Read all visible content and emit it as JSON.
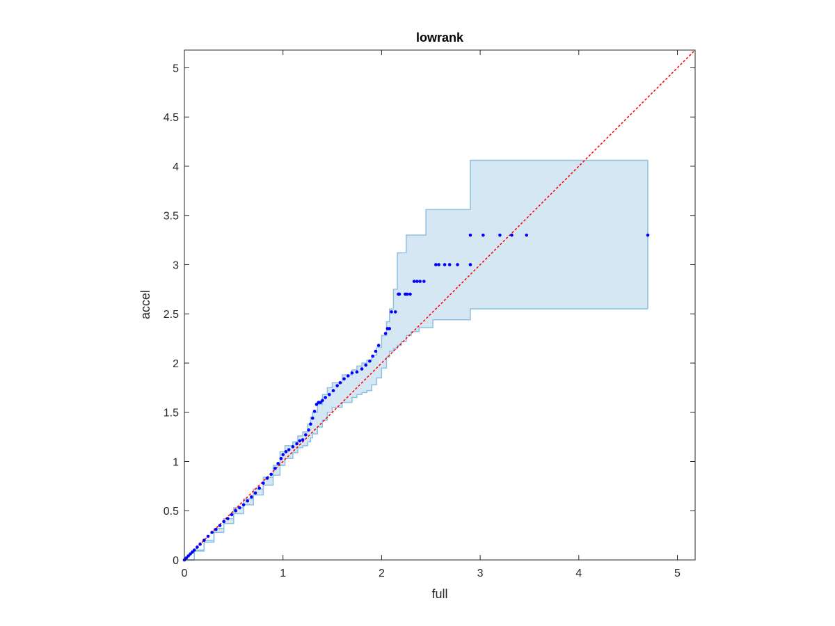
{
  "chart_data": {
    "type": "scatter",
    "title": "lowrank",
    "xlabel": "full",
    "ylabel": "accel",
    "xlim": [
      0,
      5.18
    ],
    "ylim": [
      0,
      5.18
    ],
    "xticks": [
      0,
      1,
      2,
      3,
      4,
      5
    ],
    "xtick_labels": [
      "0",
      "1",
      "2",
      "3",
      "4",
      "5"
    ],
    "yticks": [
      0,
      0.5,
      1,
      1.5,
      2,
      2.5,
      3,
      3.5,
      4,
      4.5,
      5
    ],
    "ytick_labels": [
      "0",
      "0.5",
      "1",
      "1.5",
      "2",
      "2.5",
      "3",
      "3.5",
      "4",
      "4.5",
      "5"
    ],
    "grid": false,
    "colors": {
      "points": "#0000ff",
      "band_fill": "#d6e7f4",
      "band_edge": "#8ec0e0",
      "reference_line": "#ff0000",
      "axes": "#262626"
    },
    "series": [
      {
        "kind": "points",
        "x": [
          0.0,
          0.02,
          0.04,
          0.06,
          0.08,
          0.1,
          0.13,
          0.16,
          0.2,
          0.24,
          0.28,
          0.32,
          0.36,
          0.4,
          0.44,
          0.48,
          0.52,
          0.56,
          0.6,
          0.64,
          0.68,
          0.72,
          0.76,
          0.8,
          0.84,
          0.88,
          0.92,
          0.95,
          0.98,
          1.0,
          1.03,
          1.06,
          1.1,
          1.14,
          1.17,
          1.2,
          1.23,
          1.26,
          1.28,
          1.3,
          1.32,
          1.34,
          1.36,
          1.38,
          1.4,
          1.43,
          1.47,
          1.51,
          1.55,
          1.58,
          1.62,
          1.66,
          1.7,
          1.75,
          1.8,
          1.84,
          1.88,
          1.91,
          1.94,
          1.97,
          2.04,
          2.06,
          2.08,
          2.1,
          2.14,
          2.17,
          2.18,
          2.24,
          2.26,
          2.29,
          2.33,
          2.36,
          2.39,
          2.43,
          2.55,
          2.58,
          2.64,
          2.69,
          2.77,
          2.9,
          2.9,
          3.03,
          3.2,
          3.32,
          3.47,
          4.7
        ],
        "y": [
          0.0,
          0.02,
          0.04,
          0.06,
          0.08,
          0.1,
          0.13,
          0.16,
          0.2,
          0.24,
          0.28,
          0.31,
          0.35,
          0.39,
          0.42,
          0.46,
          0.5,
          0.53,
          0.56,
          0.6,
          0.64,
          0.68,
          0.73,
          0.78,
          0.83,
          0.87,
          0.93,
          0.98,
          1.03,
          1.07,
          1.1,
          1.12,
          1.15,
          1.18,
          1.21,
          1.22,
          1.27,
          1.32,
          1.38,
          1.44,
          1.51,
          1.58,
          1.6,
          1.6,
          1.62,
          1.65,
          1.68,
          1.72,
          1.77,
          1.8,
          1.84,
          1.87,
          1.9,
          1.91,
          1.94,
          1.98,
          2.02,
          2.07,
          2.12,
          2.18,
          2.3,
          2.35,
          2.35,
          2.52,
          2.52,
          2.7,
          2.7,
          2.7,
          2.7,
          2.7,
          2.83,
          2.83,
          2.83,
          2.83,
          3.0,
          3.0,
          3.0,
          3.0,
          3.0,
          3.0,
          3.3,
          3.3,
          3.3,
          3.3,
          3.3,
          3.3
        ]
      },
      {
        "kind": "band",
        "x": [
          0.0,
          0.1,
          0.2,
          0.3,
          0.4,
          0.5,
          0.6,
          0.7,
          0.8,
          0.9,
          0.97,
          1.02,
          1.1,
          1.15,
          1.2,
          1.25,
          1.28,
          1.3,
          1.35,
          1.4,
          1.45,
          1.5,
          1.6,
          1.7,
          1.75,
          1.8,
          1.85,
          1.9,
          1.95,
          2.0,
          2.05,
          2.08,
          2.12,
          2.16,
          2.2,
          2.25,
          2.3,
          2.38,
          2.45,
          2.52,
          2.9,
          4.7
        ],
        "upper": [
          0.0,
          0.1,
          0.2,
          0.32,
          0.42,
          0.53,
          0.62,
          0.72,
          0.84,
          0.96,
          1.1,
          1.16,
          1.2,
          1.26,
          1.3,
          1.38,
          1.45,
          1.5,
          1.58,
          1.68,
          1.75,
          1.8,
          1.88,
          1.93,
          1.97,
          2.0,
          2.03,
          2.08,
          2.16,
          2.28,
          2.42,
          2.55,
          2.75,
          3.12,
          3.12,
          3.3,
          3.3,
          3.3,
          3.56,
          3.56,
          4.06,
          4.06
        ],
        "lower": [
          0.0,
          0.09,
          0.18,
          0.28,
          0.37,
          0.47,
          0.56,
          0.66,
          0.76,
          0.86,
          0.96,
          1.03,
          1.09,
          1.14,
          1.16,
          1.2,
          1.24,
          1.28,
          1.35,
          1.42,
          1.5,
          1.55,
          1.6,
          1.65,
          1.68,
          1.7,
          1.72,
          1.78,
          1.85,
          1.95,
          2.06,
          2.12,
          2.15,
          2.18,
          2.22,
          2.28,
          2.32,
          2.36,
          2.36,
          2.44,
          2.55,
          2.55
        ]
      },
      {
        "kind": "line",
        "style": "dotted",
        "x": [
          0,
          5.18
        ],
        "y": [
          0,
          5.18
        ]
      }
    ]
  }
}
